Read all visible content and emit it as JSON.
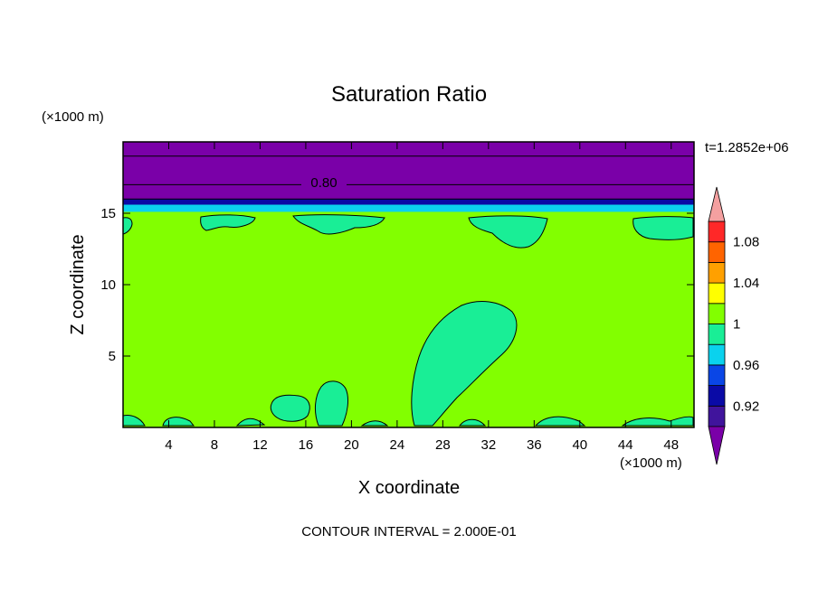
{
  "chart_data": {
    "type": "heatmap",
    "title": "Saturation Ratio",
    "xlabel": "X coordinate",
    "ylabel": "Z coordinate",
    "x_unit": "(×1000 m)",
    "y_unit": "(×1000 m)",
    "xlim": [
      0,
      50
    ],
    "ylim": [
      0,
      20
    ],
    "x_ticks": [
      4,
      8,
      12,
      16,
      20,
      24,
      28,
      32,
      36,
      40,
      44,
      48
    ],
    "y_ticks": [
      5,
      10,
      15
    ],
    "time_label": "t=1.2852e+06",
    "contour_label": "0.80",
    "contour_level": 0.8,
    "footer": "CONTOUR INTERVAL = 2.000E-01",
    "background_value": 1.0,
    "layers": [
      {
        "z_from": 17.0,
        "z_to": 20.0,
        "value": 0.8
      },
      {
        "z_from": 16.0,
        "z_to": 17.0,
        "value": 0.82
      },
      {
        "z_from": 15.6,
        "z_to": 16.0,
        "value": 0.92
      },
      {
        "z_from": 15.1,
        "z_to": 15.6,
        "value": 0.97
      }
    ],
    "upper_band_contours": [
      19.0,
      17.0,
      16.0
    ],
    "colorbar": {
      "boundaries": [
        0.9,
        0.92,
        0.94,
        0.96,
        0.98,
        1.0,
        1.02,
        1.04,
        1.06,
        1.08,
        1.1
      ],
      "tick_labels": [
        "0.92",
        "0.96",
        "1",
        "1.04",
        "1.08"
      ],
      "tick_values": [
        0.92,
        0.96,
        1.0,
        1.04,
        1.08
      ],
      "colors": [
        "#40149c",
        "#0a0aa6",
        "#0a46e6",
        "#0ad2ee",
        "#19ee96",
        "#82ff00",
        "#ffff00",
        "#ffa000",
        "#ff6400",
        "#ff2828"
      ],
      "under_color": "#7a00a8",
      "over_color": "#f4a0a0"
    }
  }
}
